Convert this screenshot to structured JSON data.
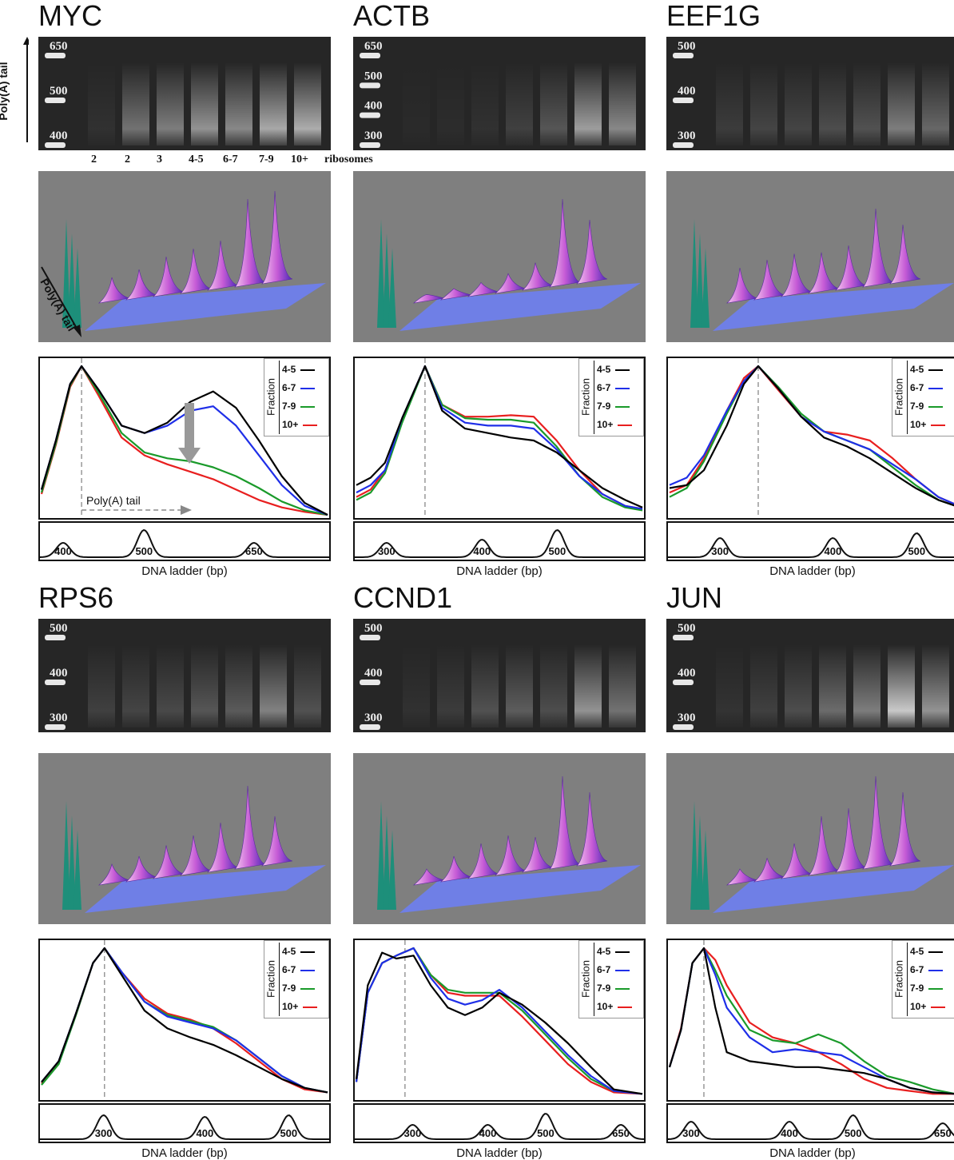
{
  "figure": {
    "lane_labels": [
      "2",
      "2",
      "3",
      "4-5",
      "6-7",
      "7-9",
      "10+",
      "ribosomes"
    ],
    "gel_axis_label": "Poly(A) tail",
    "surface_axis_label": "Poly(A) tail",
    "plot_axis_label": "Poly(A) tail",
    "ladder_caption": "DNA ladder (bp)",
    "legend": {
      "title": "Fraction",
      "entries": [
        {
          "label": "4-5",
          "color": "#000000"
        },
        {
          "label": "6-7",
          "color": "#1f2fe8"
        },
        {
          "label": "7-9",
          "color": "#1a9a2a"
        },
        {
          "label": "10+",
          "color": "#e81f1f"
        }
      ]
    }
  },
  "panels": [
    {
      "gene": "MYC",
      "gel_markers": [
        "650",
        "500",
        "400"
      ],
      "ladder_peaks": [
        "400",
        "500",
        "650"
      ],
      "ladder_positions": [
        0.08,
        0.36,
        0.74
      ],
      "ladder_heights": [
        0.45,
        0.85,
        0.45
      ],
      "peak_position": 0.14,
      "chart_data": {
        "type": "line",
        "x": [
          0,
          0.05,
          0.1,
          0.14,
          0.2,
          0.28,
          0.36,
          0.44,
          0.52,
          0.6,
          0.68,
          0.76,
          0.84,
          0.92,
          1.0
        ],
        "series": [
          {
            "name": "4-5",
            "values": [
              0.17,
              0.5,
              0.88,
              1.0,
              0.84,
              0.6,
              0.55,
              0.62,
              0.76,
              0.83,
              0.72,
              0.5,
              0.26,
              0.08,
              0.0
            ]
          },
          {
            "name": "6-7",
            "values": [
              0.17,
              0.5,
              0.88,
              1.0,
              0.84,
              0.6,
              0.55,
              0.6,
              0.7,
              0.73,
              0.6,
              0.4,
              0.2,
              0.06,
              0.0
            ]
          },
          {
            "name": "7-9",
            "values": [
              0.15,
              0.48,
              0.87,
              1.0,
              0.82,
              0.55,
              0.42,
              0.38,
              0.36,
              0.32,
              0.26,
              0.18,
              0.09,
              0.03,
              0.0
            ]
          },
          {
            "name": "10+",
            "values": [
              0.14,
              0.47,
              0.86,
              1.0,
              0.8,
              0.52,
              0.4,
              0.34,
              0.29,
              0.24,
              0.17,
              0.1,
              0.05,
              0.02,
              0.0
            ]
          }
        ]
      },
      "gel_lanes": [
        0.05,
        0.35,
        0.4,
        0.5,
        0.45,
        0.6,
        0.62
      ],
      "surface_peaks": [
        0.2,
        0.25,
        0.35,
        0.4,
        0.45,
        0.85,
        0.9
      ]
    },
    {
      "gene": "ACTB",
      "gel_markers": [
        "650",
        "500",
        "400",
        "300"
      ],
      "ladder_peaks": [
        "300",
        "400",
        "500"
      ],
      "ladder_positions": [
        0.11,
        0.44,
        0.7
      ],
      "ladder_heights": [
        0.45,
        0.55,
        0.85
      ],
      "peak_position": 0.24,
      "chart_data": {
        "type": "line",
        "x": [
          0,
          0.05,
          0.1,
          0.16,
          0.24,
          0.3,
          0.38,
          0.46,
          0.54,
          0.62,
          0.7,
          0.78,
          0.86,
          0.94,
          1.0
        ],
        "series": [
          {
            "name": "4-5",
            "values": [
              0.2,
              0.25,
              0.35,
              0.65,
              1.0,
              0.7,
              0.58,
              0.55,
              0.52,
              0.5,
              0.42,
              0.3,
              0.18,
              0.1,
              0.05
            ]
          },
          {
            "name": "6-7",
            "values": [
              0.15,
              0.2,
              0.3,
              0.65,
              1.0,
              0.72,
              0.62,
              0.6,
              0.6,
              0.58,
              0.44,
              0.26,
              0.14,
              0.06,
              0.04
            ]
          },
          {
            "name": "7-9",
            "values": [
              0.1,
              0.15,
              0.28,
              0.62,
              1.0,
              0.74,
              0.65,
              0.64,
              0.64,
              0.62,
              0.46,
              0.26,
              0.12,
              0.05,
              0.03
            ]
          },
          {
            "name": "10+",
            "values": [
              0.12,
              0.17,
              0.3,
              0.64,
              1.0,
              0.74,
              0.66,
              0.66,
              0.67,
              0.66,
              0.5,
              0.3,
              0.14,
              0.06,
              0.04
            ]
          }
        ]
      },
      "gel_lanes": [
        0.02,
        0.03,
        0.05,
        0.12,
        0.22,
        0.55,
        0.45
      ],
      "surface_peaks": [
        0.02,
        0.05,
        0.08,
        0.14,
        0.22,
        0.85,
        0.6
      ]
    },
    {
      "gene": "EEF1G",
      "gel_markers": [
        "500",
        "400",
        "300"
      ],
      "ladder_peaks": [
        "300",
        "400",
        "500"
      ],
      "ladder_positions": [
        0.18,
        0.57,
        0.86
      ],
      "ladder_heights": [
        0.6,
        0.6,
        0.75
      ],
      "peak_position": 0.31,
      "chart_data": {
        "type": "line",
        "x": [
          0,
          0.06,
          0.12,
          0.2,
          0.26,
          0.31,
          0.38,
          0.46,
          0.54,
          0.62,
          0.7,
          0.78,
          0.86,
          0.94,
          1.0
        ],
        "series": [
          {
            "name": "4-5",
            "values": [
              0.18,
              0.2,
              0.3,
              0.6,
              0.88,
              1.0,
              0.85,
              0.66,
              0.52,
              0.46,
              0.38,
              0.28,
              0.18,
              0.1,
              0.06
            ]
          },
          {
            "name": "6-7",
            "values": [
              0.2,
              0.25,
              0.4,
              0.7,
              0.9,
              1.0,
              0.85,
              0.66,
              0.56,
              0.5,
              0.44,
              0.34,
              0.24,
              0.12,
              0.07
            ]
          },
          {
            "name": "7-9",
            "values": [
              0.12,
              0.18,
              0.36,
              0.68,
              0.9,
              1.0,
              0.86,
              0.68,
              0.56,
              0.5,
              0.44,
              0.32,
              0.2,
              0.1,
              0.06
            ]
          },
          {
            "name": "10+",
            "values": [
              0.15,
              0.2,
              0.38,
              0.7,
              0.92,
              1.0,
              0.84,
              0.66,
              0.56,
              0.54,
              0.5,
              0.38,
              0.24,
              0.12,
              0.07
            ]
          }
        ]
      },
      "gel_lanes": [
        0.1,
        0.14,
        0.14,
        0.18,
        0.2,
        0.4,
        0.3
      ],
      "surface_peaks": [
        0.3,
        0.35,
        0.38,
        0.36,
        0.4,
        0.75,
        0.55
      ]
    },
    {
      "gene": "RPS6",
      "gel_markers": [
        "500",
        "400",
        "300"
      ],
      "ladder_peaks": [
        "300",
        "400",
        "500"
      ],
      "ladder_positions": [
        0.22,
        0.57,
        0.86
      ],
      "ladder_heights": [
        0.75,
        0.7,
        0.75
      ],
      "peak_position": 0.22,
      "chart_data": {
        "type": "line",
        "x": [
          0,
          0.06,
          0.12,
          0.18,
          0.22,
          0.28,
          0.36,
          0.44,
          0.52,
          0.6,
          0.68,
          0.76,
          0.84,
          0.92,
          1.0
        ],
        "series": [
          {
            "name": "4-5",
            "values": [
              0.1,
              0.24,
              0.56,
              0.9,
              1.0,
              0.82,
              0.58,
              0.46,
              0.4,
              0.35,
              0.28,
              0.2,
              0.12,
              0.06,
              0.03
            ]
          },
          {
            "name": "6-7",
            "values": [
              0.1,
              0.24,
              0.56,
              0.9,
              1.0,
              0.84,
              0.64,
              0.54,
              0.5,
              0.46,
              0.38,
              0.26,
              0.14,
              0.06,
              0.03
            ]
          },
          {
            "name": "7-9",
            "values": [
              0.08,
              0.22,
              0.55,
              0.9,
              1.0,
              0.84,
              0.64,
              0.55,
              0.51,
              0.47,
              0.38,
              0.26,
              0.14,
              0.06,
              0.03
            ]
          },
          {
            "name": "10+",
            "values": [
              0.09,
              0.23,
              0.55,
              0.9,
              1.0,
              0.84,
              0.66,
              0.56,
              0.52,
              0.46,
              0.36,
              0.24,
              0.12,
              0.05,
              0.03
            ]
          }
        ]
      },
      "gel_lanes": [
        0.12,
        0.14,
        0.16,
        0.22,
        0.24,
        0.42,
        0.2
      ],
      "surface_peaks": [
        0.15,
        0.2,
        0.28,
        0.35,
        0.45,
        0.8,
        0.45
      ]
    },
    {
      "gene": "CCND1",
      "gel_markers": [
        "500",
        "400",
        "300"
      ],
      "ladder_peaks": [
        "300",
        "400",
        "500",
        "650"
      ],
      "ladder_positions": [
        0.2,
        0.46,
        0.66,
        0.92
      ],
      "ladder_heights": [
        0.45,
        0.45,
        0.8,
        0.45
      ],
      "peak_position": 0.17,
      "chart_data": {
        "type": "line",
        "x": [
          0,
          0.04,
          0.09,
          0.14,
          0.2,
          0.26,
          0.32,
          0.38,
          0.44,
          0.5,
          0.58,
          0.66,
          0.74,
          0.82,
          0.9,
          1.0
        ],
        "series": [
          {
            "name": "4-5",
            "values": [
              0.12,
              0.75,
              0.97,
              0.93,
              0.95,
              0.75,
              0.6,
              0.55,
              0.6,
              0.7,
              0.62,
              0.5,
              0.36,
              0.2,
              0.05,
              0.02
            ]
          },
          {
            "name": "6-7",
            "values": [
              0.1,
              0.7,
              0.9,
              0.95,
              1.0,
              0.8,
              0.66,
              0.62,
              0.65,
              0.72,
              0.6,
              0.44,
              0.28,
              0.14,
              0.04,
              0.02
            ]
          },
          {
            "name": "7-9",
            "values": [
              0.1,
              0.7,
              0.9,
              0.95,
              1.0,
              0.82,
              0.72,
              0.7,
              0.7,
              0.7,
              0.58,
              0.42,
              0.26,
              0.12,
              0.04,
              0.02
            ]
          },
          {
            "name": "10+",
            "values": [
              0.1,
              0.7,
              0.9,
              0.95,
              1.0,
              0.82,
              0.7,
              0.68,
              0.68,
              0.68,
              0.54,
              0.38,
              0.22,
              0.1,
              0.03,
              0.02
            ]
          }
        ]
      },
      "gel_lanes": [
        0.05,
        0.1,
        0.2,
        0.25,
        0.18,
        0.5,
        0.35
      ],
      "surface_peaks": [
        0.1,
        0.2,
        0.3,
        0.35,
        0.3,
        0.9,
        0.7
      ]
    },
    {
      "gene": "JUN",
      "gel_markers": [
        "500",
        "400",
        "300"
      ],
      "ladder_peaks": [
        "300",
        "400",
        "500",
        "650"
      ],
      "ladder_positions": [
        0.08,
        0.42,
        0.64,
        0.95
      ],
      "ladder_heights": [
        0.55,
        0.55,
        0.75,
        0.5
      ],
      "peak_position": 0.12,
      "chart_data": {
        "type": "line",
        "x": [
          0,
          0.04,
          0.08,
          0.12,
          0.16,
          0.2,
          0.28,
          0.36,
          0.44,
          0.52,
          0.6,
          0.68,
          0.76,
          0.84,
          0.92,
          1.0
        ],
        "series": [
          {
            "name": "4-5",
            "values": [
              0.2,
              0.45,
              0.9,
              1.0,
              0.6,
              0.3,
              0.24,
              0.22,
              0.2,
              0.2,
              0.18,
              0.16,
              0.12,
              0.06,
              0.03,
              0.02
            ]
          },
          {
            "name": "6-7",
            "values": [
              0.2,
              0.45,
              0.9,
              1.0,
              0.82,
              0.6,
              0.4,
              0.3,
              0.32,
              0.3,
              0.28,
              0.2,
              0.12,
              0.06,
              0.03,
              0.02
            ]
          },
          {
            "name": "7-9",
            "values": [
              0.2,
              0.45,
              0.9,
              1.0,
              0.85,
              0.68,
              0.45,
              0.38,
              0.36,
              0.42,
              0.36,
              0.24,
              0.14,
              0.1,
              0.05,
              0.02
            ]
          },
          {
            "name": "10+",
            "values": [
              0.2,
              0.46,
              0.9,
              1.0,
              0.92,
              0.75,
              0.5,
              0.4,
              0.36,
              0.3,
              0.22,
              0.12,
              0.06,
              0.04,
              0.02,
              0.02
            ]
          }
        ]
      },
      "gel_lanes": [
        0.06,
        0.12,
        0.18,
        0.32,
        0.4,
        0.75,
        0.5
      ],
      "surface_peaks": [
        0.1,
        0.18,
        0.3,
        0.55,
        0.6,
        0.9,
        0.7
      ]
    }
  ]
}
